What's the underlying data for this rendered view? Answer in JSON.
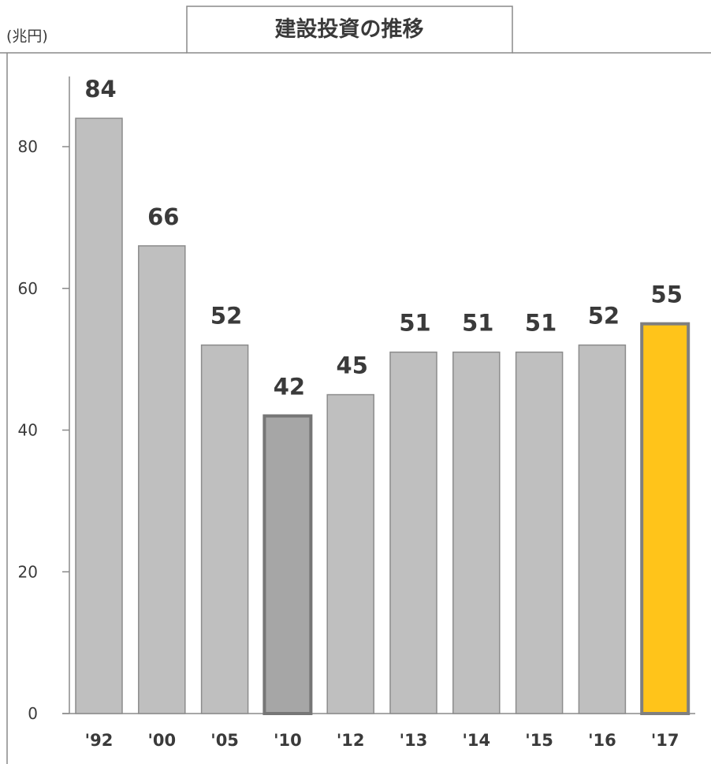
{
  "chart_data": {
    "type": "bar",
    "title": "建設投資の推移",
    "unit_label": "(兆円)",
    "categories": [
      "'92",
      "'00",
      "'05",
      "'10",
      "'12",
      "'13",
      "'14",
      "'15",
      "'16",
      "'17"
    ],
    "values": [
      84,
      66,
      52,
      42,
      45,
      51,
      51,
      51,
      52,
      55
    ],
    "data_labels": [
      "84",
      "66",
      "52",
      "42",
      "45",
      "51",
      "51",
      "51",
      "52",
      "55"
    ],
    "ylim": [
      0,
      90
    ],
    "yticks": [
      0,
      20,
      40,
      60,
      80
    ],
    "ytick_labels": [
      "0",
      "20",
      "40",
      "60",
      "80"
    ],
    "grid": false,
    "colors": {
      "default_bar": "#bfbfbf",
      "default_border": "#8c8c8c",
      "highlight_2010_bar": "#a6a6a6",
      "highlight_2010_border": "#767676",
      "latest_bar": "#ffc41a",
      "latest_border": "#7f7f7f"
    },
    "highlight": {
      "'10": "dark",
      "'17": "accent"
    }
  }
}
